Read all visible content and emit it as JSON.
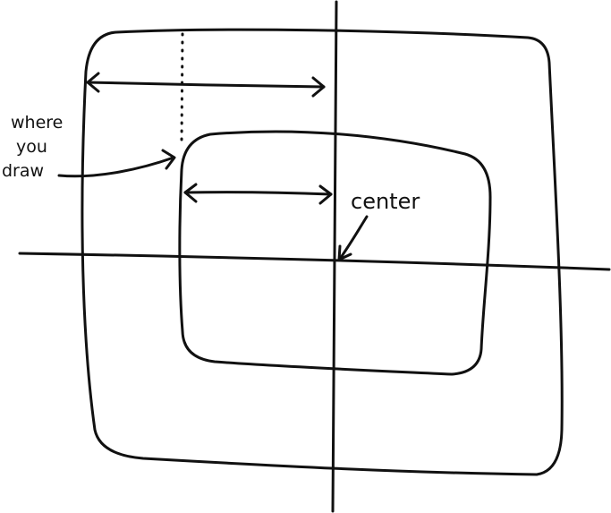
{
  "labels": {
    "where_line1": "where",
    "where_line2": "you",
    "where_line3": "draw",
    "center": "center"
  },
  "colors": {
    "outer_fill": "#91DFD1",
    "inner_fill": "#7A8F0E",
    "ink": "#111111",
    "background": "#FFFFFF"
  }
}
